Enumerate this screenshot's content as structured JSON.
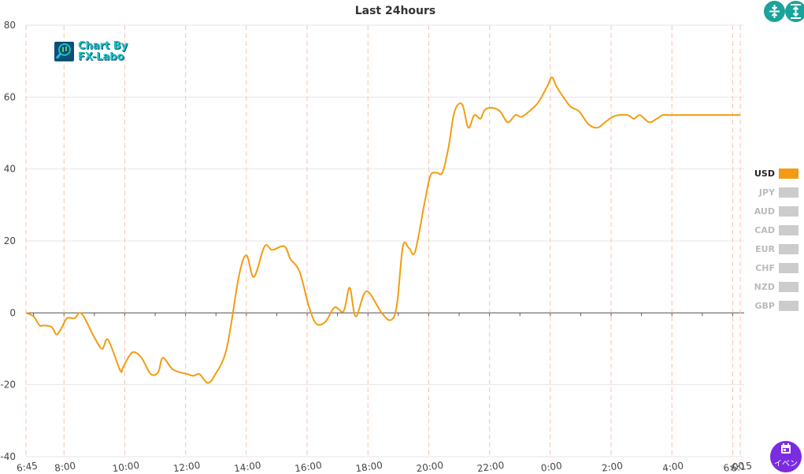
{
  "toolbar": {
    "compress_icon": "compress-vertical-icon",
    "expand_icon": "expand-vertical-icon",
    "event_icon": "calendar-icon",
    "event_label": "イベン"
  },
  "logo": {
    "line1": "Chart By",
    "line2": "FX-Labo"
  },
  "colors": {
    "usd": "#f39c12",
    "inactive": "#cccccc",
    "grid": "#e6e6e6",
    "vline": "#f6c3b0"
  },
  "chart_data": {
    "type": "line",
    "title": "Last 24hours",
    "xlabel": "",
    "ylabel": "",
    "ylim": [
      -40,
      80
    ],
    "yticks": [
      -40,
      -20,
      0,
      20,
      40,
      60,
      80
    ],
    "xticks": [
      "6:45",
      "8:00",
      "10:00",
      "12:00",
      "14:00",
      "16:00",
      "18:00",
      "20:00",
      "22:00",
      "0:00",
      "2:00",
      "4:00",
      "6:00",
      "6:15"
    ],
    "grid": true,
    "legend_position": "right",
    "legend": [
      {
        "name": "USD",
        "active": true
      },
      {
        "name": "JPY",
        "active": false
      },
      {
        "name": "AUD",
        "active": false
      },
      {
        "name": "CAD",
        "active": false
      },
      {
        "name": "EUR",
        "active": false
      },
      {
        "name": "CHF",
        "active": false
      },
      {
        "name": "NZD",
        "active": false
      },
      {
        "name": "GBP",
        "active": false
      }
    ],
    "series": [
      {
        "name": "USD",
        "hours_since_start": [
          0,
          0.25,
          0.45,
          0.6,
          0.85,
          1.0,
          1.15,
          1.35,
          1.6,
          1.75,
          1.9,
          2.2,
          2.5,
          2.7,
          3.1,
          3.2,
          3.5,
          3.8,
          4.1,
          4.35,
          4.5,
          4.8,
          5.05,
          5.3,
          5.5,
          5.7,
          5.85,
          6.0,
          6.2,
          6.6,
          7.0,
          7.25,
          7.5,
          7.85,
          8.1,
          8.5,
          8.7,
          9.0,
          9.3,
          9.55,
          9.85,
          10.15,
          10.45,
          10.65,
          10.85,
          11.2,
          11.7,
          12.0,
          12.2,
          12.4,
          12.6,
          12.8,
          13.1,
          13.3,
          13.5,
          13.7,
          13.9,
          14.1,
          14.35,
          14.55,
          14.75,
          14.95,
          15.1,
          15.35,
          15.6,
          15.85,
          16.1,
          16.3,
          16.55,
          16.85,
          17.15,
          17.3,
          17.45,
          17.6,
          17.9,
          18.2,
          18.5,
          18.8,
          19.05,
          19.3,
          19.5,
          19.8,
          20.0,
          20.2,
          20.5,
          20.75,
          20.95,
          21.15,
          21.4,
          21.6,
          21.8,
          22.0,
          22.2,
          22.5,
          22.7,
          22.95,
          23.25,
          23.5
        ],
        "values": [
          0,
          -1,
          -3.5,
          -3.5,
          -4,
          -6,
          -4.5,
          -1.5,
          -1.5,
          0,
          -1,
          -6,
          -10,
          -7.5,
          -16,
          -15,
          -11,
          -12.5,
          -17,
          -16.5,
          -12.5,
          -15.5,
          -16.5,
          -17,
          -17.5,
          -17,
          -18.5,
          -19.5,
          -17.5,
          -10,
          10,
          16,
          10,
          18.5,
          17.5,
          18.5,
          15,
          11.5,
          2,
          -3,
          -2.5,
          1.5,
          0.5,
          7,
          -1,
          6,
          0,
          -2,
          2,
          18.5,
          18,
          17,
          30,
          38,
          39,
          39,
          46,
          56,
          58,
          51.5,
          55,
          54,
          56.5,
          57,
          56,
          53,
          55,
          54.5,
          56,
          58.5,
          63,
          65.5,
          63,
          61,
          57.5,
          56,
          52.5,
          51.5,
          53,
          54.5,
          55,
          55,
          54,
          55,
          53,
          54,
          55,
          55,
          55,
          55,
          55,
          55,
          55,
          55,
          55,
          55,
          55,
          55
        ]
      }
    ]
  }
}
